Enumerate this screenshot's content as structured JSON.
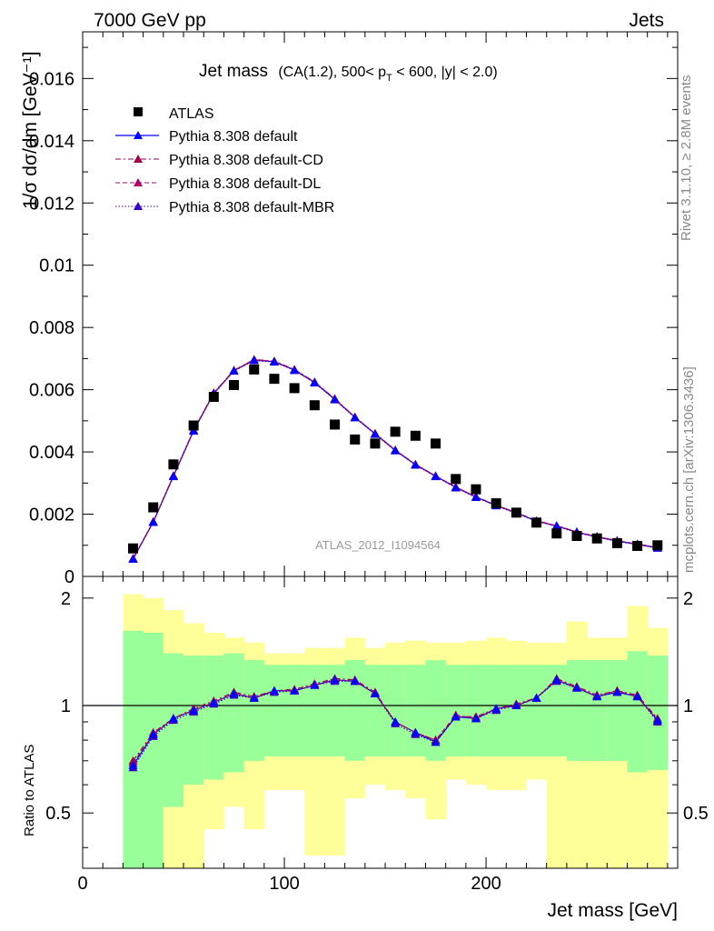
{
  "header": {
    "left": "7000 GeV pp",
    "right": "Jets"
  },
  "side_labels": {
    "rivet": "Rivet 3.1.10, ≥ 2.8M events",
    "mcplots": "mcplots.cern.ch [arXiv:1306.3436]"
  },
  "watermark": "ATLAS_2012_I1094564",
  "title": {
    "main": "Jet mass",
    "cuts_a": "(CA(1.2), 500< p",
    "cuts_sub": "T",
    "cuts_b": " < 600, |y| < 2.0)"
  },
  "axis_labels": {
    "y_main": "1/σ dσ/dm [GeV⁻¹]",
    "y_ratio": "Ratio to ATLAS",
    "x": "Jet mass [GeV]"
  },
  "colors": {
    "data": "#000000",
    "default": "#0000ff",
    "cd": "#a0004a",
    "dl": "#b0006a",
    "mbr": "#3a00c8",
    "band_inner": "#99ff99",
    "band_outer": "#ffff99"
  },
  "chart_data": {
    "type": "scatter",
    "x_range": [
      0,
      295
    ],
    "y_range_main": [
      0,
      0.0175
    ],
    "y_range_ratio": [
      0.35,
      2.3
    ],
    "x_ticks": [
      0,
      100,
      200
    ],
    "y_ticks_main": [
      "0",
      "0.002",
      "0.004",
      "0.006",
      "0.008",
      "0.01",
      "0.012",
      "0.014",
      "0.016"
    ],
    "y_ticks_ratio": [
      "0.5",
      "1",
      "2"
    ],
    "x_centers": [
      25,
      35,
      45,
      55,
      65,
      75,
      85,
      95,
      105,
      115,
      125,
      135,
      145,
      155,
      165,
      175,
      185,
      195,
      205,
      215,
      225,
      235,
      245,
      255,
      265,
      275,
      285
    ],
    "series": [
      {
        "name": "ATLAS",
        "marker": "square",
        "values": [
          0.0009,
          0.00222,
          0.0036,
          0.00485,
          0.00577,
          0.00615,
          0.00665,
          0.00635,
          0.00605,
          0.0055,
          0.00488,
          0.0044,
          0.00427,
          0.00465,
          0.00452,
          0.00427,
          0.00313,
          0.0028,
          0.00235,
          0.00205,
          0.00173,
          0.00138,
          0.0013,
          0.00122,
          0.00107,
          0.00098,
          0.001
        ]
      },
      {
        "name": "Pythia 8.308 default",
        "line": "solid",
        "values": [
          0.00056,
          0.00175,
          0.00322,
          0.00468,
          0.00588,
          0.00661,
          0.00695,
          0.0069,
          0.00663,
          0.00623,
          0.00569,
          0.00511,
          0.00458,
          0.00405,
          0.00359,
          0.00322,
          0.00286,
          0.00255,
          0.00228,
          0.00204,
          0.00178,
          0.00162,
          0.00142,
          0.00127,
          0.00114,
          0.00103,
          0.00092
        ]
      },
      {
        "name": "Pythia 8.308 default-CD",
        "line": "dashdot",
        "values": [
          0.00058,
          0.00176,
          0.00324,
          0.0047,
          0.0059,
          0.00662,
          0.00697,
          0.00692,
          0.00665,
          0.00625,
          0.00571,
          0.00512,
          0.00459,
          0.00406,
          0.0036,
          0.00323,
          0.00287,
          0.00256,
          0.00229,
          0.00205,
          0.00179,
          0.00163,
          0.00143,
          0.00128,
          0.00115,
          0.00104,
          0.00093
        ]
      },
      {
        "name": "Pythia 8.308 default-DL",
        "line": "dashed",
        "values": [
          0.00057,
          0.00176,
          0.00323,
          0.00469,
          0.00589,
          0.00662,
          0.00696,
          0.00691,
          0.00664,
          0.00624,
          0.0057,
          0.00512,
          0.00459,
          0.00406,
          0.0036,
          0.00323,
          0.00287,
          0.00256,
          0.00229,
          0.00205,
          0.00179,
          0.00163,
          0.00143,
          0.00128,
          0.00115,
          0.00104,
          0.00093
        ]
      },
      {
        "name": "Pythia 8.308 default-MBR",
        "line": "dotted",
        "values": [
          0.00056,
          0.00174,
          0.00321,
          0.00467,
          0.00587,
          0.0066,
          0.00694,
          0.00689,
          0.00662,
          0.00622,
          0.00568,
          0.0051,
          0.00457,
          0.00404,
          0.00358,
          0.00321,
          0.00285,
          0.00254,
          0.00227,
          0.00203,
          0.00177,
          0.00161,
          0.00141,
          0.00126,
          0.00113,
          0.00102,
          0.00091
        ]
      }
    ],
    "ratio": {
      "x_centers": [
        25,
        35,
        45,
        55,
        65,
        75,
        85,
        95,
        105,
        115,
        125,
        135,
        145,
        155,
        165,
        175,
        185,
        195,
        205,
        215,
        225,
        235,
        245,
        255,
        265,
        275,
        285
      ],
      "default": [
        0.68,
        0.83,
        0.92,
        0.97,
        1.02,
        1.08,
        1.05,
        1.1,
        1.1,
        1.14,
        1.18,
        1.17,
        1.08,
        0.9,
        0.84,
        0.79,
        0.93,
        0.92,
        0.98,
        1.0,
        1.05,
        1.18,
        1.12,
        1.06,
        1.09,
        1.06,
        0.91
      ],
      "cd": [
        0.7,
        0.84,
        0.92,
        0.98,
        1.03,
        1.09,
        1.06,
        1.1,
        1.11,
        1.15,
        1.19,
        1.18,
        1.09,
        0.9,
        0.84,
        0.8,
        0.93,
        0.93,
        0.98,
        1.01,
        1.05,
        1.19,
        1.13,
        1.07,
        1.1,
        1.07,
        0.92
      ],
      "dl": [
        0.69,
        0.83,
        0.92,
        0.97,
        1.02,
        1.08,
        1.05,
        1.1,
        1.1,
        1.14,
        1.18,
        1.17,
        1.08,
        0.9,
        0.84,
        0.8,
        0.94,
        0.92,
        0.98,
        1.0,
        1.05,
        1.18,
        1.12,
        1.06,
        1.1,
        1.06,
        0.91
      ],
      "mbr": [
        0.67,
        0.82,
        0.91,
        0.96,
        1.01,
        1.07,
        1.05,
        1.09,
        1.1,
        1.14,
        1.17,
        1.17,
        1.08,
        0.89,
        0.83,
        0.79,
        0.93,
        0.92,
        0.97,
        1.0,
        1.05,
        1.17,
        1.12,
        1.06,
        1.09,
        1.06,
        0.9
      ],
      "band_edges": [
        20,
        30,
        40,
        50,
        60,
        70,
        80,
        90,
        100,
        110,
        120,
        130,
        140,
        150,
        160,
        170,
        180,
        190,
        200,
        210,
        220,
        230,
        240,
        250,
        260,
        270,
        280,
        290
      ],
      "inner_hi": [
        1.62,
        1.6,
        1.4,
        1.38,
        1.38,
        1.4,
        1.34,
        1.3,
        1.3,
        1.3,
        1.3,
        1.34,
        1.3,
        1.3,
        1.3,
        1.34,
        1.3,
        1.3,
        1.3,
        1.3,
        1.3,
        1.3,
        1.34,
        1.34,
        1.34,
        1.42,
        1.38
      ],
      "inner_lo": [
        0.35,
        0.35,
        0.52,
        0.6,
        0.62,
        0.65,
        0.7,
        0.72,
        0.72,
        0.72,
        0.72,
        0.7,
        0.72,
        0.72,
        0.72,
        0.7,
        0.72,
        0.72,
        0.72,
        0.72,
        0.72,
        0.72,
        0.7,
        0.7,
        0.7,
        0.65,
        0.66
      ],
      "outer_hi": [
        2.05,
        2.0,
        1.85,
        1.7,
        1.6,
        1.55,
        1.5,
        1.4,
        1.4,
        1.45,
        1.45,
        1.55,
        1.45,
        1.5,
        1.52,
        1.5,
        1.5,
        1.52,
        1.55,
        1.52,
        1.5,
        1.5,
        1.72,
        1.55,
        1.55,
        1.9,
        1.65
      ],
      "outer_lo": [
        0.35,
        0.35,
        0.35,
        0.35,
        0.45,
        0.52,
        0.45,
        0.58,
        0.58,
        0.38,
        0.38,
        0.55,
        0.6,
        0.58,
        0.55,
        0.48,
        0.62,
        0.6,
        0.58,
        0.58,
        0.62,
        0.35,
        0.35,
        0.35,
        0.35,
        0.35,
        0.35
      ]
    }
  }
}
